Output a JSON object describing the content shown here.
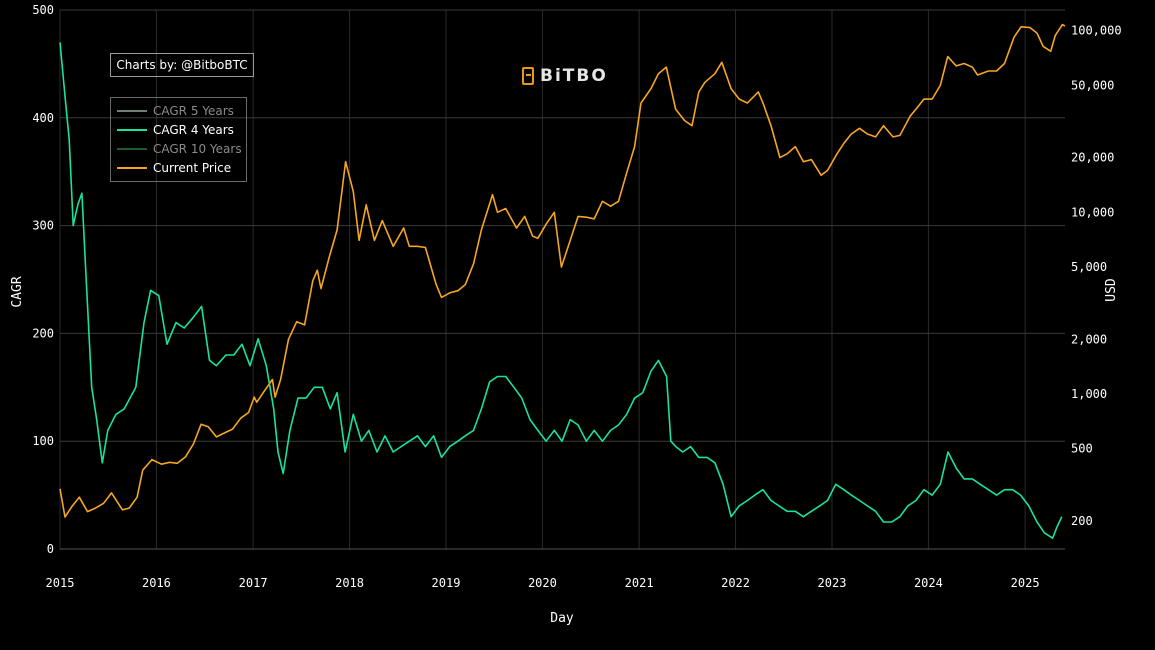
{
  "chart_data": {
    "type": "line",
    "title": "",
    "xlabel": "Day",
    "ylabel": "CAGR",
    "y2label": "USD",
    "ylim": [
      0,
      500
    ],
    "y2_scale": "log",
    "y2lim": [
      140,
      130000
    ],
    "xlim": [
      "2015-01-01",
      "2025-06-01"
    ],
    "x_ticks": [
      "2015",
      "2016",
      "2017",
      "2018",
      "2019",
      "2020",
      "2021",
      "2022",
      "2023",
      "2024",
      "2025"
    ],
    "y_ticks": [
      "0",
      "100",
      "200",
      "300",
      "400",
      "500"
    ],
    "y2_ticks": [
      {
        "value": 200,
        "label": "200"
      },
      {
        "value": 500,
        "label": "500"
      },
      {
        "value": 1000,
        "label": "1,000"
      },
      {
        "value": 2000,
        "label": "2,000"
      },
      {
        "value": 5000,
        "label": "5,000"
      },
      {
        "value": 10000,
        "label": "10,000"
      },
      {
        "value": 20000,
        "label": "20,000"
      },
      {
        "value": 50000,
        "label": "50,000"
      },
      {
        "value": 100000,
        "label": "100,000"
      }
    ],
    "grid": true,
    "legend_position": "top-left",
    "series": [
      {
        "name": "CAGR 5 Years",
        "color": "#6e7f74",
        "visible": false,
        "values": []
      },
      {
        "name": "CAGR 4 Years",
        "color": "#18e39b",
        "axis": "left",
        "visible": true,
        "x": [
          "2015-01-01",
          "2015-01-20",
          "2015-02-05",
          "2015-02-20",
          "2015-03-10",
          "2015-03-25",
          "2015-04-10",
          "2015-05-01",
          "2015-05-20",
          "2015-06-10",
          "2015-07-01",
          "2015-08-01",
          "2015-09-01",
          "2015-10-15",
          "2015-11-15",
          "2015-12-10",
          "2016-01-10",
          "2016-02-10",
          "2016-03-15",
          "2016-04-15",
          "2016-05-20",
          "2016-06-20",
          "2016-07-20",
          "2016-08-15",
          "2016-09-20",
          "2016-10-20",
          "2016-11-20",
          "2016-12-20",
          "2017-01-20",
          "2017-02-20",
          "2017-03-20",
          "2017-04-05",
          "2017-04-25",
          "2017-05-20",
          "2017-06-20",
          "2017-07-20",
          "2017-08-20",
          "2017-09-20",
          "2017-10-20",
          "2017-11-15",
          "2017-12-15",
          "2018-01-15",
          "2018-02-15",
          "2018-03-15",
          "2018-04-15",
          "2018-05-15",
          "2018-06-15",
          "2018-07-15",
          "2018-08-15",
          "2018-09-15",
          "2018-10-15",
          "2018-11-15",
          "2018-12-15",
          "2019-01-15",
          "2019-02-15",
          "2019-03-15",
          "2019-04-15",
          "2019-05-15",
          "2019-06-15",
          "2019-07-15",
          "2019-08-15",
          "2019-09-15",
          "2019-10-15",
          "2019-11-15",
          "2019-12-15",
          "2020-01-15",
          "2020-02-15",
          "2020-03-15",
          "2020-04-15",
          "2020-05-15",
          "2020-06-15",
          "2020-07-15",
          "2020-08-15",
          "2020-09-15",
          "2020-10-15",
          "2020-11-15",
          "2020-12-15",
          "2021-01-15",
          "2021-02-15",
          "2021-03-15",
          "2021-04-15",
          "2021-05-01",
          "2021-05-20",
          "2021-06-15",
          "2021-07-15",
          "2021-08-15",
          "2021-09-15",
          "2021-10-15",
          "2021-11-15",
          "2021-12-15",
          "2022-01-15",
          "2022-02-15",
          "2022-03-15",
          "2022-04-15",
          "2022-05-15",
          "2022-06-15",
          "2022-07-15",
          "2022-08-15",
          "2022-09-15",
          "2022-10-15",
          "2022-11-15",
          "2022-12-15",
          "2023-01-15",
          "2023-02-15",
          "2023-03-15",
          "2023-04-15",
          "2023-05-15",
          "2023-06-15",
          "2023-07-15",
          "2023-08-15",
          "2023-09-15",
          "2023-10-15",
          "2023-11-15",
          "2023-12-15",
          "2024-01-15",
          "2024-02-15",
          "2024-03-15",
          "2024-04-15",
          "2024-05-15",
          "2024-06-15",
          "2024-07-15",
          "2024-08-15",
          "2024-09-15",
          "2024-10-15",
          "2024-11-15",
          "2024-12-15",
          "2025-01-15",
          "2025-02-15",
          "2025-03-15",
          "2025-04-15",
          "2025-05-01",
          "2025-05-20"
        ],
        "values": [
          470,
          420,
          380,
          300,
          320,
          330,
          250,
          150,
          120,
          80,
          110,
          125,
          130,
          150,
          210,
          240,
          235,
          190,
          210,
          205,
          215,
          225,
          175,
          170,
          180,
          180,
          190,
          170,
          195,
          170,
          130,
          90,
          70,
          110,
          140,
          140,
          150,
          150,
          130,
          145,
          90,
          125,
          100,
          110,
          90,
          105,
          90,
          95,
          100,
          105,
          95,
          105,
          85,
          95,
          100,
          105,
          110,
          130,
          155,
          160,
          160,
          150,
          140,
          120,
          110,
          100,
          110,
          100,
          120,
          115,
          100,
          110,
          100,
          110,
          115,
          125,
          140,
          145,
          165,
          175,
          160,
          100,
          95,
          90,
          95,
          85,
          85,
          80,
          60,
          30,
          40,
          45,
          50,
          55,
          45,
          40,
          35,
          35,
          30,
          35,
          40,
          45,
          60,
          55,
          50,
          45,
          40,
          35,
          25,
          25,
          30,
          40,
          45,
          55,
          50,
          60,
          90,
          75,
          65,
          65,
          60,
          55,
          50,
          55,
          55,
          50,
          40,
          25,
          15,
          10,
          20,
          30
        ]
      },
      {
        "name": "CAGR 10 Years",
        "color": "#1f5a2e",
        "visible": false,
        "values": []
      },
      {
        "name": "Current Price",
        "color": "#f5a623",
        "axis": "right",
        "visible": true,
        "x": [
          "2015-01-01",
          "2015-01-20",
          "2015-02-15",
          "2015-03-15",
          "2015-04-15",
          "2015-05-15",
          "2015-06-15",
          "2015-07-15",
          "2015-08-25",
          "2015-09-20",
          "2015-10-20",
          "2015-11-10",
          "2015-12-15",
          "2016-01-20",
          "2016-02-20",
          "2016-03-20",
          "2016-04-20",
          "2016-05-20",
          "2016-06-18",
          "2016-07-15",
          "2016-08-15",
          "2016-09-15",
          "2016-10-15",
          "2016-11-15",
          "2016-12-15",
          "2017-01-05",
          "2017-01-15",
          "2017-02-15",
          "2017-03-15",
          "2017-03-25",
          "2017-04-15",
          "2017-05-15",
          "2017-06-15",
          "2017-07-15",
          "2017-08-15",
          "2017-09-01",
          "2017-09-15",
          "2017-10-15",
          "2017-11-15",
          "2017-12-17",
          "2018-01-15",
          "2018-02-06",
          "2018-03-05",
          "2018-04-05",
          "2018-05-05",
          "2018-06-15",
          "2018-07-25",
          "2018-08-15",
          "2018-09-15",
          "2018-10-15",
          "2018-11-25",
          "2018-12-15",
          "2019-01-15",
          "2019-02-15",
          "2019-03-15",
          "2019-04-15",
          "2019-05-15",
          "2019-06-26",
          "2019-07-15",
          "2019-08-15",
          "2019-09-25",
          "2019-10-26",
          "2019-11-25",
          "2019-12-15",
          "2020-01-15",
          "2020-02-15",
          "2020-03-13",
          "2020-04-15",
          "2020-05-15",
          "2020-06-15",
          "2020-07-15",
          "2020-08-15",
          "2020-09-15",
          "2020-10-15",
          "2020-11-15",
          "2020-12-15",
          "2021-01-08",
          "2021-02-15",
          "2021-03-15",
          "2021-04-14",
          "2021-05-19",
          "2021-06-22",
          "2021-07-20",
          "2021-08-15",
          "2021-09-07",
          "2021-10-15",
          "2021-11-10",
          "2021-12-15",
          "2022-01-15",
          "2022-02-15",
          "2022-03-28",
          "2022-04-15",
          "2022-05-15",
          "2022-06-18",
          "2022-07-15",
          "2022-08-15",
          "2022-09-15",
          "2022-10-15",
          "2022-11-21",
          "2022-12-15",
          "2023-01-20",
          "2023-02-15",
          "2023-03-15",
          "2023-04-15",
          "2023-05-15",
          "2023-06-15",
          "2023-07-15",
          "2023-08-20",
          "2023-09-15",
          "2023-10-25",
          "2023-11-15",
          "2023-12-15",
          "2024-01-15",
          "2024-02-15",
          "2024-03-14",
          "2024-04-15",
          "2024-05-15",
          "2024-06-15",
          "2024-07-05",
          "2024-08-15",
          "2024-09-15",
          "2024-10-15",
          "2024-11-20",
          "2024-12-17",
          "2025-01-20",
          "2025-02-15",
          "2025-03-10",
          "2025-04-08",
          "2025-04-25",
          "2025-05-22",
          "2025-06-01"
        ],
        "values": [
          300,
          210,
          240,
          270,
          225,
          235,
          250,
          285,
          230,
          235,
          270,
          380,
          435,
          410,
          420,
          415,
          450,
          530,
          680,
          660,
          580,
          610,
          640,
          735,
          790,
          960,
          900,
          1050,
          1200,
          960,
          1200,
          2000,
          2500,
          2400,
          4200,
          4800,
          3800,
          5600,
          8000,
          19000,
          13000,
          7000,
          11000,
          7000,
          9000,
          6500,
          8200,
          6500,
          6500,
          6400,
          4000,
          3400,
          3600,
          3700,
          4000,
          5200,
          8000,
          12500,
          10000,
          10500,
          8200,
          9500,
          7400,
          7200,
          8600,
          10000,
          5000,
          7000,
          9500,
          9400,
          9200,
          11500,
          10800,
          11500,
          16500,
          23000,
          40000,
          48000,
          58000,
          63000,
          37000,
          32000,
          30000,
          46000,
          52000,
          58000,
          67000,
          48000,
          42000,
          40000,
          46000,
          40000,
          30000,
          20000,
          21000,
          23000,
          19000,
          19500,
          16000,
          17000,
          21000,
          24000,
          27000,
          29000,
          27000,
          26000,
          30000,
          26000,
          26500,
          34000,
          37000,
          42000,
          42000,
          50000,
          72000,
          64000,
          66000,
          63000,
          57000,
          60000,
          60000,
          66000,
          92000,
          105000,
          104000,
          97000,
          82000,
          77000,
          94000,
          108000,
          106000
        ]
      }
    ]
  }
}
